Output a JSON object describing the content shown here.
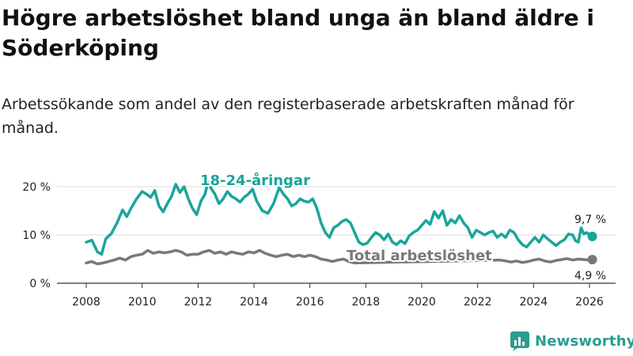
{
  "page": {
    "title": "Högre arbetslöshet bland unga än bland äldre i Söderköping",
    "subtitle": "Arbetssökande som andel av den registerbaserade arbetskraften månad för månad.",
    "brand": "Newsworthy"
  },
  "colors": {
    "young": "#1aa59a",
    "total": "#7a777a",
    "grid": "#d9d9d9",
    "text": "#222222",
    "brand": "#2a9d8f"
  },
  "chart_data": {
    "type": "line",
    "title": "Högre arbetslöshet bland unga än bland äldre i Söderköping",
    "xlabel": "",
    "ylabel": "",
    "xlim": [
      2008,
      2026.3
    ],
    "ylim": [
      0,
      20
    ],
    "y_ticks": [
      0,
      10,
      20
    ],
    "y_tick_labels": [
      "0 %",
      "10 %",
      "20 %"
    ],
    "x_ticks": [
      2008,
      2010,
      2012,
      2014,
      2016,
      2018,
      2020,
      2022,
      2024,
      2026
    ],
    "x_tick_labels": [
      "2008",
      "2010",
      "2012",
      "2014",
      "2016",
      "2018",
      "2020",
      "2022",
      "2024",
      "2026"
    ],
    "grid": true,
    "series": [
      {
        "name": "18-24-åringar",
        "color": "#1aa59a",
        "points": [
          [
            2008.0,
            8.5
          ],
          [
            2008.2,
            8.9
          ],
          [
            2008.4,
            6.5
          ],
          [
            2008.55,
            6.0
          ],
          [
            2008.7,
            9.2
          ],
          [
            2008.9,
            10.3
          ],
          [
            2009.1,
            12.5
          ],
          [
            2009.3,
            15.2
          ],
          [
            2009.45,
            13.8
          ],
          [
            2009.6,
            15.5
          ],
          [
            2009.8,
            17.5
          ],
          [
            2010.0,
            19.0
          ],
          [
            2010.15,
            18.5
          ],
          [
            2010.3,
            17.8
          ],
          [
            2010.45,
            19.2
          ],
          [
            2010.6,
            16.0
          ],
          [
            2010.75,
            14.8
          ],
          [
            2010.9,
            16.5
          ],
          [
            2011.05,
            18.0
          ],
          [
            2011.2,
            20.5
          ],
          [
            2011.35,
            18.8
          ],
          [
            2011.5,
            20.0
          ],
          [
            2011.65,
            17.5
          ],
          [
            2011.8,
            15.5
          ],
          [
            2011.95,
            14.2
          ],
          [
            2012.1,
            17.0
          ],
          [
            2012.25,
            18.5
          ],
          [
            2012.35,
            21.0
          ],
          [
            2012.45,
            19.8
          ],
          [
            2012.6,
            18.5
          ],
          [
            2012.75,
            16.5
          ],
          [
            2012.9,
            17.5
          ],
          [
            2013.05,
            19.0
          ],
          [
            2013.2,
            18.0
          ],
          [
            2013.35,
            17.5
          ],
          [
            2013.5,
            16.8
          ],
          [
            2013.65,
            17.8
          ],
          [
            2013.8,
            18.5
          ],
          [
            2013.95,
            19.5
          ],
          [
            2014.1,
            17.0
          ],
          [
            2014.3,
            15.0
          ],
          [
            2014.5,
            14.5
          ],
          [
            2014.7,
            16.5
          ],
          [
            2014.9,
            19.8
          ],
          [
            2015.05,
            18.5
          ],
          [
            2015.2,
            17.5
          ],
          [
            2015.35,
            16.0
          ],
          [
            2015.5,
            16.5
          ],
          [
            2015.65,
            17.5
          ],
          [
            2015.8,
            17.0
          ],
          [
            2015.95,
            16.8
          ],
          [
            2016.1,
            17.5
          ],
          [
            2016.25,
            15.5
          ],
          [
            2016.4,
            12.5
          ],
          [
            2016.55,
            10.5
          ],
          [
            2016.7,
            9.5
          ],
          [
            2016.85,
            11.5
          ],
          [
            2017.0,
            12.0
          ],
          [
            2017.15,
            12.8
          ],
          [
            2017.3,
            13.2
          ],
          [
            2017.45,
            12.5
          ],
          [
            2017.6,
            10.5
          ],
          [
            2017.75,
            8.5
          ],
          [
            2017.9,
            8.0
          ],
          [
            2018.05,
            8.3
          ],
          [
            2018.2,
            9.5
          ],
          [
            2018.35,
            10.5
          ],
          [
            2018.5,
            10.0
          ],
          [
            2018.65,
            9.0
          ],
          [
            2018.8,
            10.2
          ],
          [
            2018.95,
            8.5
          ],
          [
            2019.1,
            8.0
          ],
          [
            2019.25,
            8.8
          ],
          [
            2019.4,
            8.2
          ],
          [
            2019.55,
            9.8
          ],
          [
            2019.7,
            10.5
          ],
          [
            2019.85,
            11.0
          ],
          [
            2020.0,
            12.0
          ],
          [
            2020.15,
            13.0
          ],
          [
            2020.3,
            12.2
          ],
          [
            2020.45,
            14.8
          ],
          [
            2020.6,
            13.5
          ],
          [
            2020.75,
            15.0
          ],
          [
            2020.9,
            12.0
          ],
          [
            2021.05,
            13.2
          ],
          [
            2021.2,
            12.5
          ],
          [
            2021.35,
            14.0
          ],
          [
            2021.5,
            12.5
          ],
          [
            2021.65,
            11.5
          ],
          [
            2021.8,
            9.5
          ],
          [
            2021.95,
            11.0
          ],
          [
            2022.1,
            10.5
          ],
          [
            2022.25,
            10.0
          ],
          [
            2022.4,
            10.5
          ],
          [
            2022.55,
            10.8
          ],
          [
            2022.7,
            9.5
          ],
          [
            2022.85,
            10.2
          ],
          [
            2023.0,
            9.5
          ],
          [
            2023.15,
            11.0
          ],
          [
            2023.3,
            10.5
          ],
          [
            2023.45,
            9.0
          ],
          [
            2023.6,
            8.0
          ],
          [
            2023.75,
            7.5
          ],
          [
            2023.9,
            8.5
          ],
          [
            2024.05,
            9.5
          ],
          [
            2024.2,
            8.5
          ],
          [
            2024.35,
            10.0
          ],
          [
            2024.5,
            9.2
          ],
          [
            2024.65,
            8.5
          ],
          [
            2024.8,
            7.8
          ],
          [
            2024.95,
            8.5
          ],
          [
            2025.1,
            9.0
          ],
          [
            2025.25,
            10.2
          ],
          [
            2025.4,
            10.0
          ],
          [
            2025.5,
            8.8
          ],
          [
            2025.6,
            8.5
          ],
          [
            2025.7,
            11.5
          ],
          [
            2025.8,
            10.2
          ],
          [
            2025.9,
            10.5
          ],
          [
            2026.0,
            10.0
          ],
          [
            2026.1,
            9.7
          ]
        ],
        "last_value_label": "9,7 %"
      },
      {
        "name": "Total arbetslöshet",
        "color": "#7a777a",
        "points": [
          [
            2008.0,
            4.2
          ],
          [
            2008.2,
            4.5
          ],
          [
            2008.4,
            4.0
          ],
          [
            2008.6,
            4.2
          ],
          [
            2008.8,
            4.5
          ],
          [
            2009.0,
            4.8
          ],
          [
            2009.2,
            5.2
          ],
          [
            2009.4,
            4.8
          ],
          [
            2009.6,
            5.5
          ],
          [
            2009.8,
            5.8
          ],
          [
            2010.0,
            6.0
          ],
          [
            2010.2,
            6.8
          ],
          [
            2010.4,
            6.2
          ],
          [
            2010.6,
            6.5
          ],
          [
            2010.8,
            6.3
          ],
          [
            2011.0,
            6.5
          ],
          [
            2011.2,
            6.8
          ],
          [
            2011.4,
            6.5
          ],
          [
            2011.6,
            5.8
          ],
          [
            2011.8,
            6.0
          ],
          [
            2012.0,
            6.0
          ],
          [
            2012.2,
            6.5
          ],
          [
            2012.4,
            6.8
          ],
          [
            2012.6,
            6.2
          ],
          [
            2012.8,
            6.5
          ],
          [
            2013.0,
            6.0
          ],
          [
            2013.2,
            6.5
          ],
          [
            2013.4,
            6.2
          ],
          [
            2013.6,
            6.0
          ],
          [
            2013.8,
            6.5
          ],
          [
            2014.0,
            6.3
          ],
          [
            2014.2,
            6.8
          ],
          [
            2014.4,
            6.2
          ],
          [
            2014.6,
            5.8
          ],
          [
            2014.8,
            5.5
          ],
          [
            2015.0,
            5.8
          ],
          [
            2015.2,
            6.0
          ],
          [
            2015.4,
            5.5
          ],
          [
            2015.6,
            5.8
          ],
          [
            2015.8,
            5.5
          ],
          [
            2016.0,
            5.8
          ],
          [
            2016.2,
            5.5
          ],
          [
            2016.4,
            5.0
          ],
          [
            2016.6,
            4.8
          ],
          [
            2016.8,
            4.5
          ],
          [
            2017.0,
            4.8
          ],
          [
            2017.2,
            5.0
          ],
          [
            2017.4,
            4.5
          ],
          [
            2017.6,
            4.2
          ],
          [
            2022.8,
            4.8
          ],
          [
            2023.0,
            4.6
          ],
          [
            2023.2,
            4.4
          ],
          [
            2023.4,
            4.6
          ],
          [
            2023.6,
            4.3
          ],
          [
            2023.8,
            4.5
          ],
          [
            2024.0,
            4.8
          ],
          [
            2024.2,
            5.0
          ],
          [
            2024.4,
            4.6
          ],
          [
            2024.6,
            4.4
          ],
          [
            2024.8,
            4.7
          ],
          [
            2025.0,
            4.9
          ],
          [
            2025.2,
            5.1
          ],
          [
            2025.4,
            4.8
          ],
          [
            2025.6,
            5.0
          ],
          [
            2025.8,
            4.9
          ],
          [
            2026.0,
            4.8
          ],
          [
            2026.1,
            4.9
          ]
        ],
        "last_value_label": "4,9 %"
      }
    ],
    "annotations": [
      "18-24-åringar",
      "Total arbetslöshet",
      "9,7 %",
      "4,9 %"
    ]
  }
}
